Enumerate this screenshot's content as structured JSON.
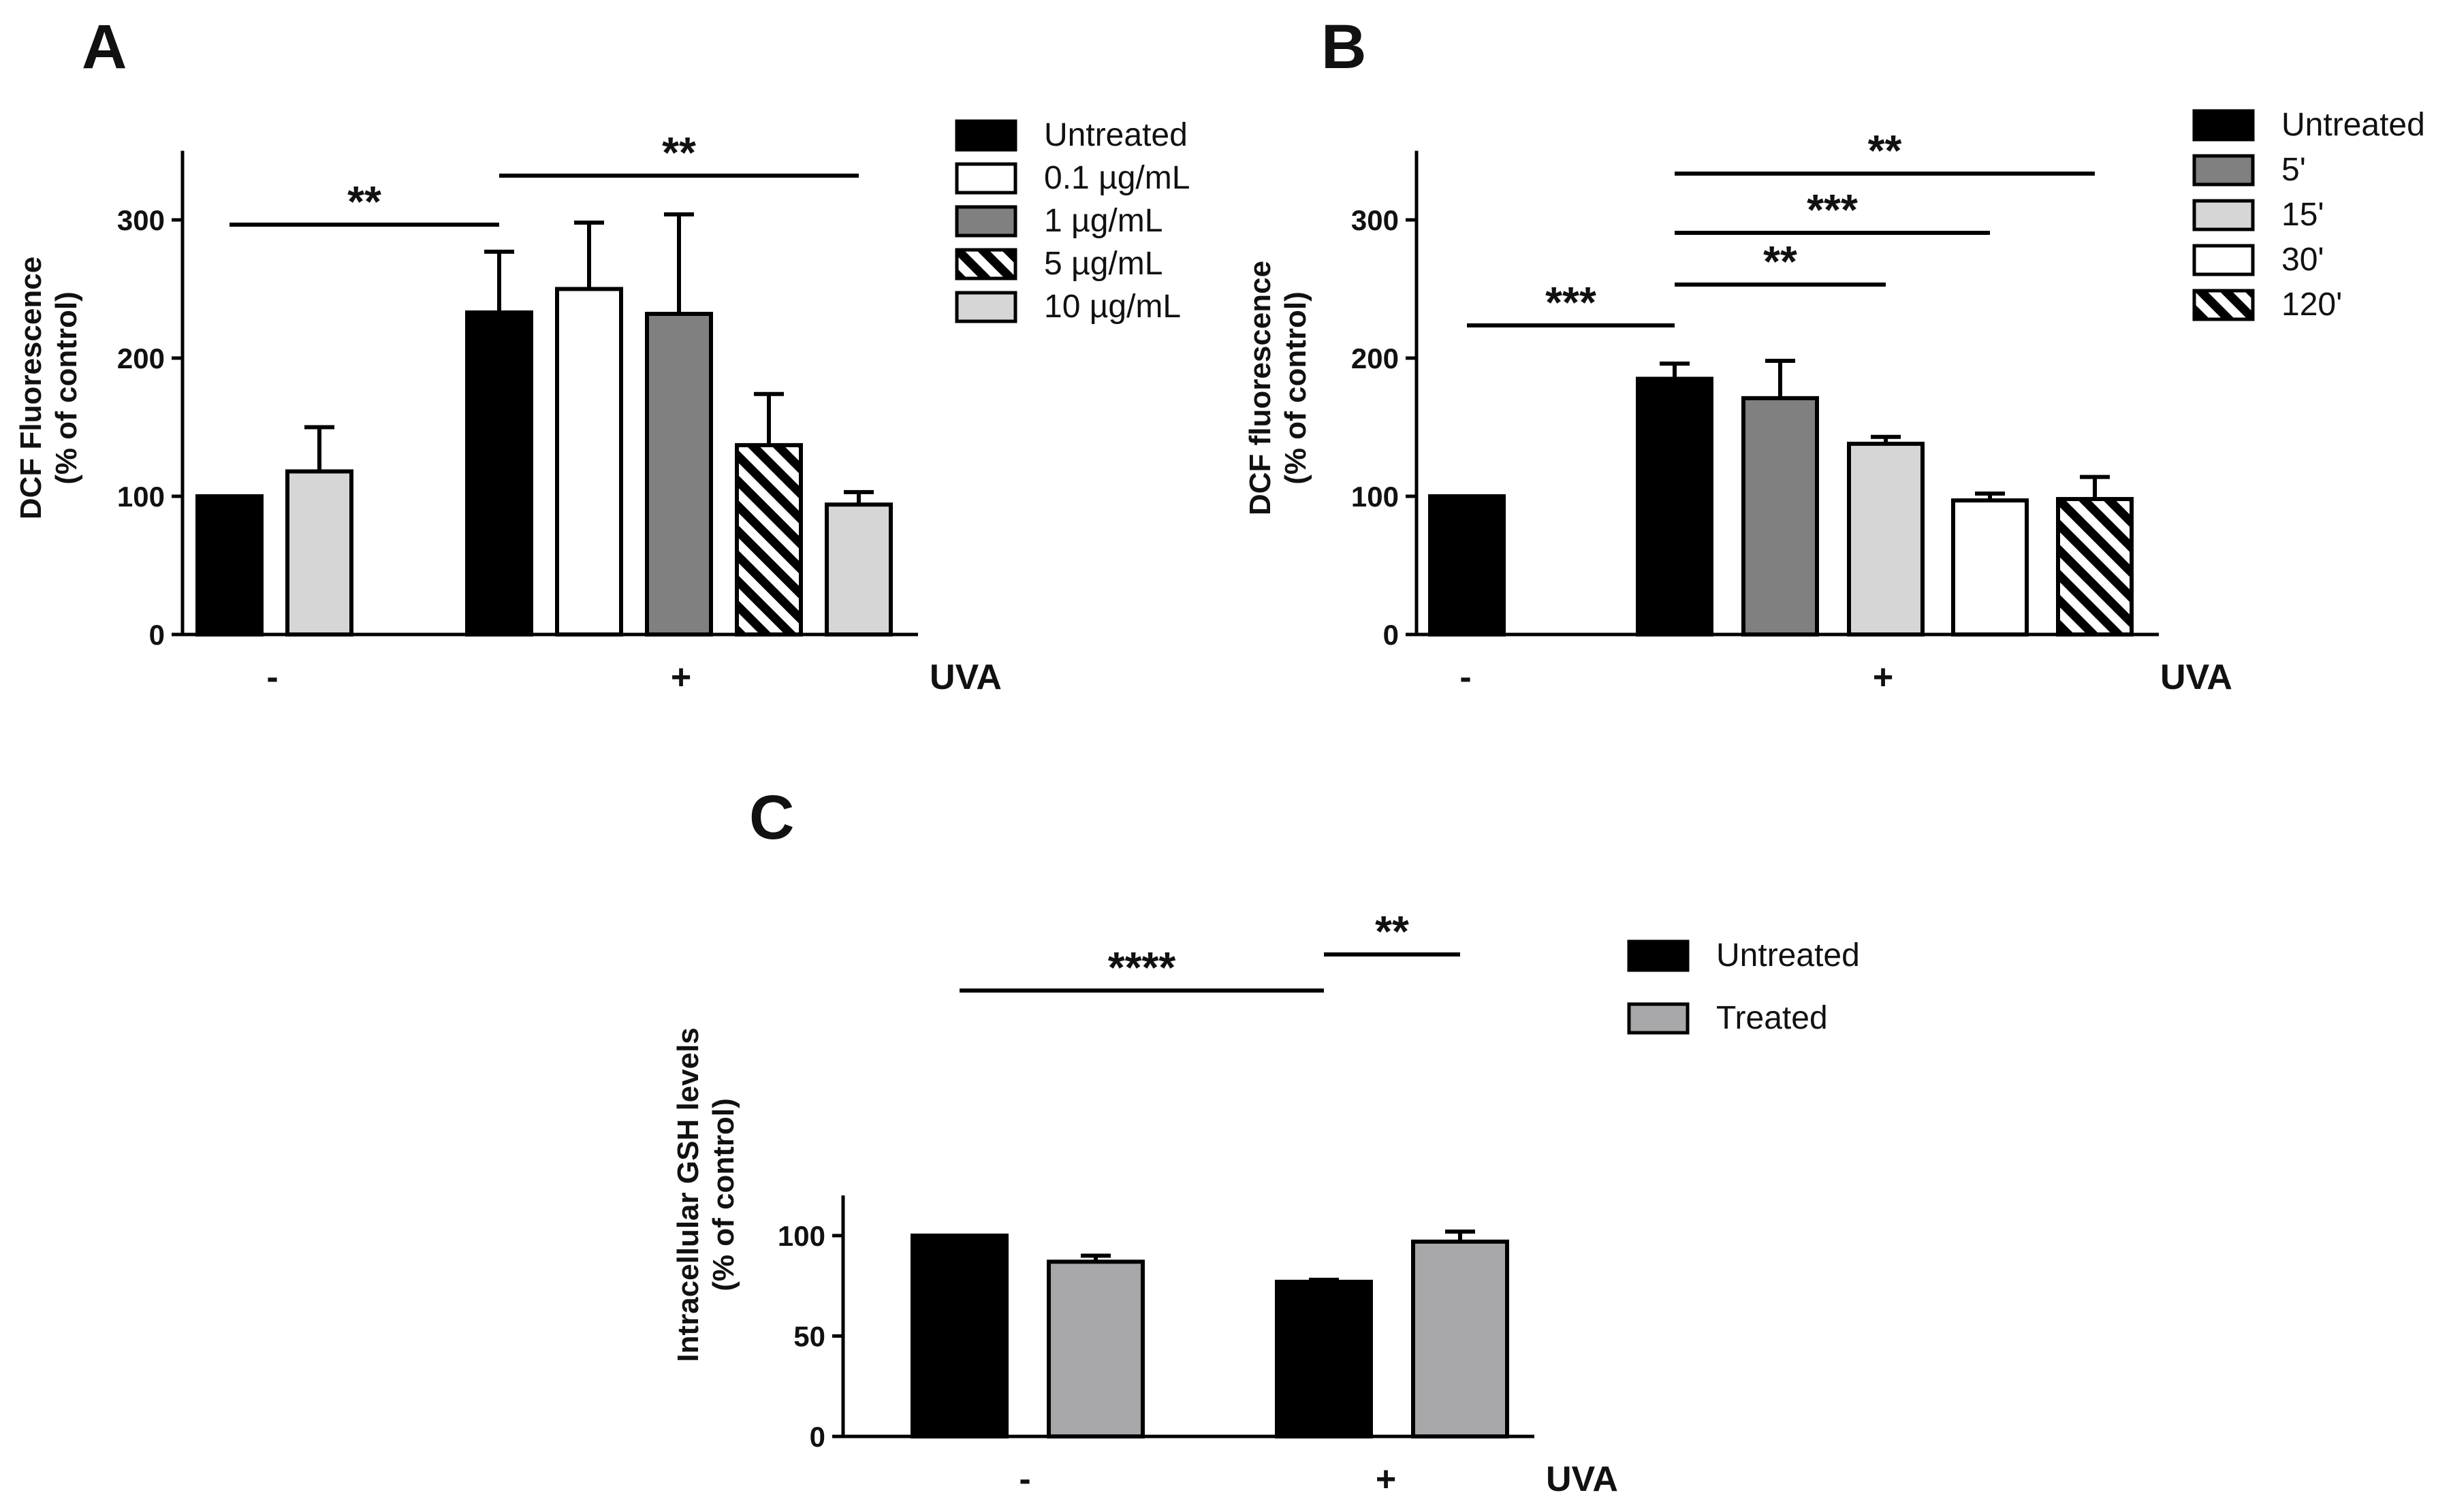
{
  "colors": {
    "black": "#000000",
    "white": "#ffffff",
    "dark_gray": "#808080",
    "light_gray": "#d6d6d6",
    "mid_gray": "#a8a8ab",
    "hatch": "hatch"
  },
  "chart_data": [
    {
      "panel": "A",
      "type": "bar",
      "title": "",
      "xlabel": "",
      "ylabel": [
        "DCF Fluorescence",
        "(% of control)"
      ],
      "ylim": [
        0,
        350
      ],
      "yticks": [
        "0",
        "100",
        "200",
        "300"
      ],
      "ytick_values": [
        0,
        100,
        200,
        300
      ],
      "series": [
        {
          "name": "Untreated",
          "fill": "black"
        },
        {
          "name": "0.1 µg/mL",
          "fill": "white"
        },
        {
          "name": "1 µg/mL",
          "fill": "dark_gray"
        },
        {
          "name": "5 µg/mL",
          "fill": "hatch"
        },
        {
          "name": "10 µg/mL",
          "fill": "light_gray"
        }
      ],
      "bars": [
        {
          "group": "-",
          "series": "Untreated",
          "value": 100,
          "error": 0
        },
        {
          "group": "-",
          "series": "10 µg/mL",
          "value": 118,
          "error": 32
        },
        {
          "group": "+",
          "series": "Untreated",
          "value": 233,
          "error": 44
        },
        {
          "group": "+",
          "series": "0.1 µg/mL",
          "value": 250,
          "error": 48
        },
        {
          "group": "+",
          "series": "1 µg/mL",
          "value": 232,
          "error": 72
        },
        {
          "group": "+",
          "series": "5 µg/mL",
          "value": 137,
          "error": 37
        },
        {
          "group": "+",
          "series": "10 µg/mL",
          "value": 94,
          "error": 9
        }
      ],
      "group_labels": [
        "-",
        "+"
      ],
      "axis_label": "UVA",
      "significance": [
        {
          "label": "**",
          "from_bar": 0,
          "to_bar": 2
        },
        {
          "label": "**",
          "from_bar": 2,
          "to_bar": 6
        }
      ]
    },
    {
      "panel": "B",
      "type": "bar",
      "title": "",
      "xlabel": "",
      "ylabel": [
        "DCF fluorescence",
        "(% of control)"
      ],
      "ylim": [
        0,
        350
      ],
      "yticks": [
        "0",
        "100",
        "200",
        "300"
      ],
      "ytick_values": [
        0,
        100,
        200,
        300
      ],
      "series": [
        {
          "name": "Untreated",
          "fill": "black"
        },
        {
          "name": "5'",
          "fill": "dark_gray"
        },
        {
          "name": "15'",
          "fill": "light_gray"
        },
        {
          "name": "30'",
          "fill": "white"
        },
        {
          "name": "120'",
          "fill": "hatch"
        }
      ],
      "bars": [
        {
          "group": "-",
          "series": "Untreated",
          "value": 100,
          "error": 0
        },
        {
          "group": "+",
          "series": "Untreated",
          "value": 185,
          "error": 11
        },
        {
          "group": "+",
          "series": "5'",
          "value": 171,
          "error": 27
        },
        {
          "group": "+",
          "series": "15'",
          "value": 138,
          "error": 5
        },
        {
          "group": "+",
          "series": "30'",
          "value": 97,
          "error": 5
        },
        {
          "group": "+",
          "series": "120'",
          "value": 98,
          "error": 16
        }
      ],
      "group_labels": [
        "-",
        "+"
      ],
      "axis_label": "UVA",
      "significance": [
        {
          "label": "***",
          "from_bar": 0,
          "to_bar": 1
        },
        {
          "label": "**",
          "from_bar": 1,
          "to_bar": 3
        },
        {
          "label": "***",
          "from_bar": 1,
          "to_bar": 4
        },
        {
          "label": "**",
          "from_bar": 1,
          "to_bar": 5
        }
      ]
    },
    {
      "panel": "C",
      "type": "bar",
      "title": "",
      "xlabel": "",
      "ylabel": [
        "Intracellular GSH levels",
        "(% of control)"
      ],
      "ylim": [
        0,
        120
      ],
      "yticks": [
        "0",
        "50",
        "100"
      ],
      "ytick_values": [
        0,
        50,
        100
      ],
      "series": [
        {
          "name": "Untreated",
          "fill": "black"
        },
        {
          "name": "Treated",
          "fill": "mid_gray"
        }
      ],
      "bars": [
        {
          "group": "-",
          "series": "Untreated",
          "value": 100,
          "error": 0
        },
        {
          "group": "-",
          "series": "Treated",
          "value": 87,
          "error": 3
        },
        {
          "group": "+",
          "series": "Untreated",
          "value": 77,
          "error": 1
        },
        {
          "group": "+",
          "series": "Treated",
          "value": 97,
          "error": 5
        }
      ],
      "group_labels": [
        "-",
        "+"
      ],
      "axis_label": "UVA",
      "significance": [
        {
          "label": "****",
          "from_bar": 0,
          "to_bar": 2
        },
        {
          "label": "**",
          "from_bar": 2,
          "to_bar": 3
        }
      ]
    }
  ]
}
